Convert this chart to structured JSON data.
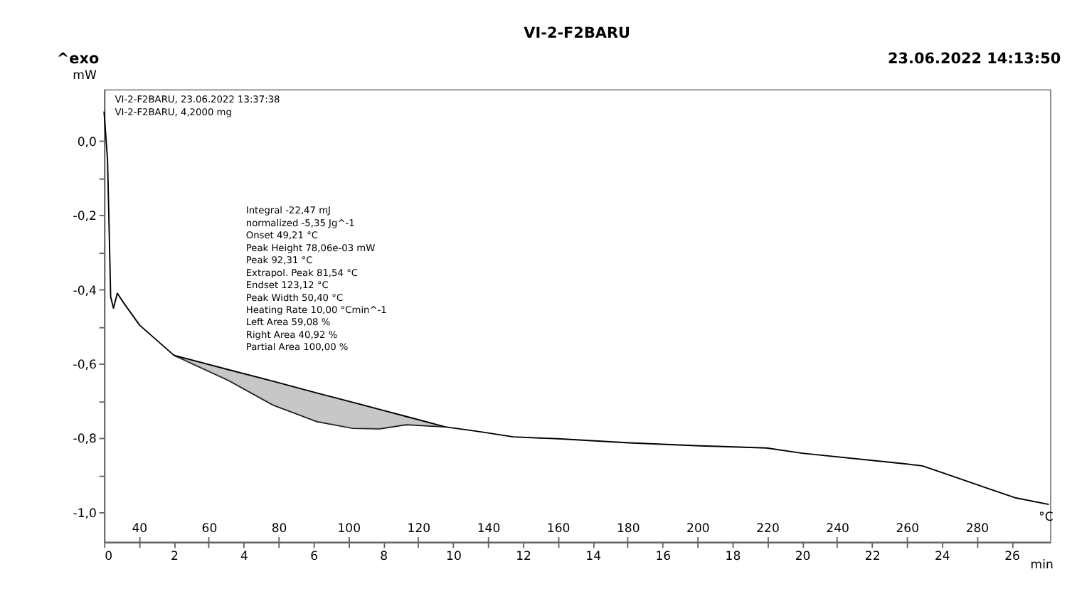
{
  "chart_data": {
    "type": "line",
    "title": "VI-2-F2BARU",
    "annotations": [
      "^exo",
      "23.06.2022 14:13:50",
      "VI-2-F2BARU, 23.06.2022 13:37:38",
      "VI-2-F2BARU, 4,2000 mg",
      "Integral  -22,47 mJ",
      "  normalized  -5,35 Jg^-1",
      "Onset  49,21 °C",
      "Peak Height  78,06e-03 mW",
      "Peak  92,31 °C",
      "Extrapol. Peak  81,54 °C",
      "Endset  123,12 °C",
      "Peak Width  50,40 °C",
      "Heating Rate  10,00 °Cmin^-1",
      "Left Area  59,08 %",
      "Right Area  40,92 %",
      "Partial Area  100,00 %"
    ],
    "xlabel": "min",
    "ylabel": "mW",
    "x2label": "°C",
    "xlim": [
      0,
      27.1
    ],
    "ylim": [
      -1.08,
      0.14
    ],
    "x2lim": [
      30,
      301
    ],
    "xticks": [
      0,
      {
        "value": 1,
        "label": null
      },
      2,
      {
        "value": 3,
        "label": null
      },
      4,
      {
        "value": 5,
        "label": null
      },
      6,
      {
        "value": 7,
        "label": null
      },
      8,
      {
        "value": 9,
        "label": null
      },
      10,
      {
        "value": 11,
        "label": null
      },
      12,
      {
        "value": 13,
        "label": null
      },
      14,
      {
        "value": 15,
        "label": null
      },
      16,
      {
        "value": 17,
        "label": null
      },
      18,
      {
        "value": 19,
        "label": null
      },
      20,
      {
        "value": 21,
        "label": null
      },
      22,
      {
        "value": 23,
        "label": null
      },
      24,
      {
        "value": 25,
        "label": null
      },
      26
    ],
    "yticks": [
      {
        "value": 0,
        "label": "0,0"
      },
      {
        "value": -0.1,
        "label": null
      },
      {
        "value": -0.2,
        "label": "-0,2"
      },
      {
        "value": -0.3,
        "label": null
      },
      {
        "value": -0.4,
        "label": "-0,4"
      },
      {
        "value": -0.5,
        "label": null
      },
      {
        "value": -0.6,
        "label": "-0,6"
      },
      {
        "value": -0.7,
        "label": null
      },
      {
        "value": -0.8,
        "label": "-0,8"
      },
      {
        "value": -0.9,
        "label": null
      },
      {
        "value": -1.0,
        "label": "-1,0"
      }
    ],
    "x2ticks": [
      40,
      60,
      80,
      100,
      120,
      140,
      160,
      180,
      200,
      220,
      240,
      260,
      280
    ],
    "grid": false,
    "marker": "none",
    "line_style": "solid",
    "series": [
      {
        "color": "#000000",
        "x": [
          0,
          0.1,
          0.19,
          0.27,
          0.38,
          0.57,
          1.02,
          2.0,
          3.57,
          4.84,
          6.11,
          7.13,
          7.9,
          8.66,
          9.78,
          10.7,
          11.72,
          13.0,
          15.03,
          17.07,
          18.98,
          20.0,
          22.8,
          23.44,
          24.07,
          25.35,
          26.1,
          27.07
        ],
        "values": [
          0.08,
          -0.05,
          -0.42,
          -0.45,
          -0.41,
          -0.437,
          -0.496,
          -0.577,
          -0.645,
          -0.711,
          -0.756,
          -0.774,
          -0.775,
          -0.764,
          -0.77,
          -0.782,
          -0.797,
          -0.802,
          -0.813,
          -0.821,
          -0.827,
          -0.841,
          -0.868,
          -0.875,
          -0.895,
          -0.937,
          -0.961,
          -0.979
        ]
      },
      {
        "color": "#000000",
        "x": [
          2.0,
          3.57,
          4.84,
          6.11,
          7.13,
          7.9,
          8.66,
          9.78
        ],
        "values": [
          -0.577,
          -0.616,
          -0.647,
          -0.679,
          -0.704,
          -0.723,
          -0.742,
          -0.77
        ],
        "lower": [
          -0.577,
          -0.645,
          -0.711,
          -0.756,
          -0.774,
          -0.775,
          -0.764,
          -0.77
        ],
        "upper": [
          -0.577,
          -0.616,
          -0.647,
          -0.679,
          -0.704,
          -0.723,
          -0.742,
          -0.77
        ]
      }
    ]
  }
}
